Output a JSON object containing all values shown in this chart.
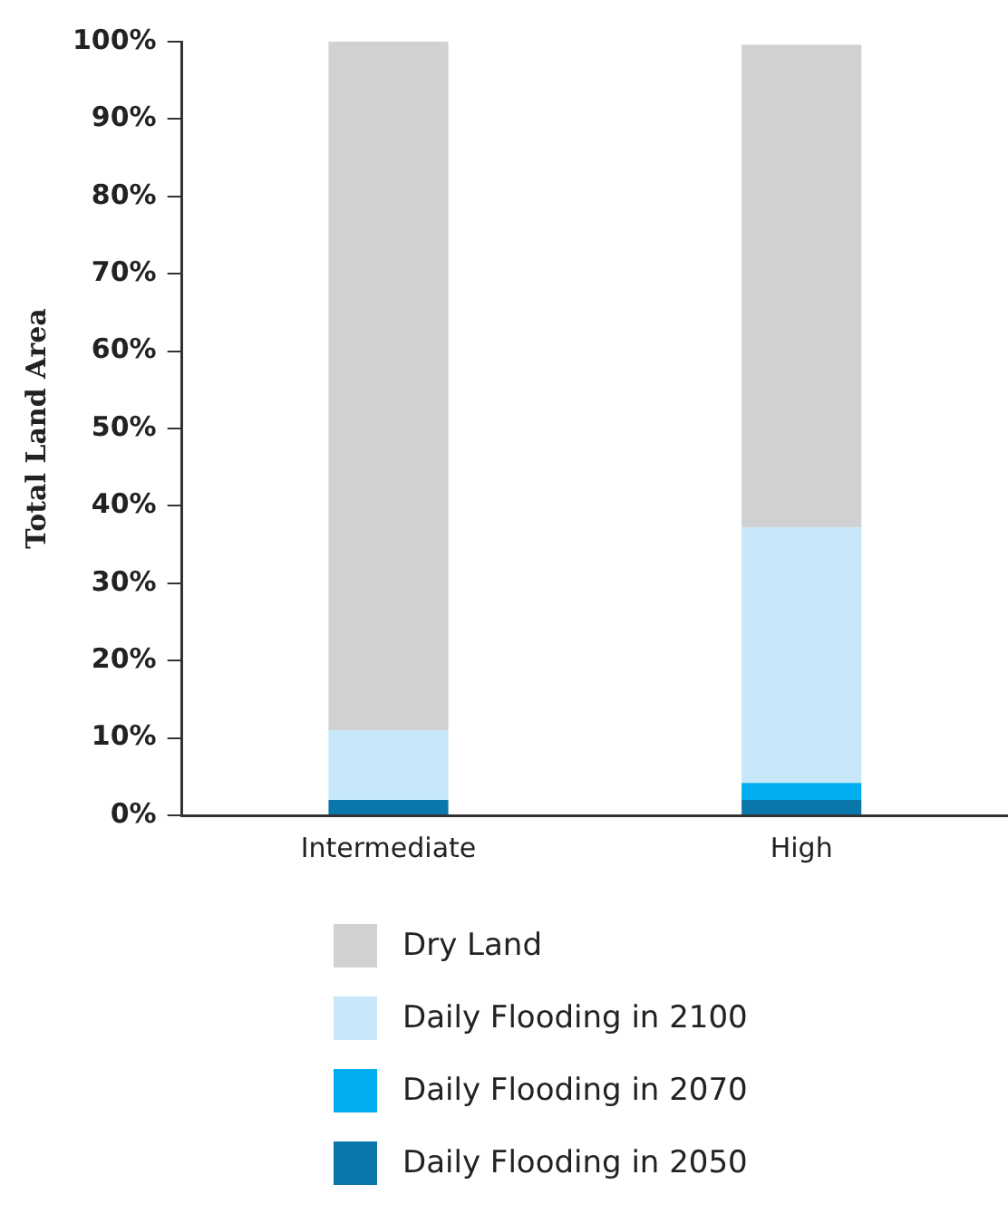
{
  "chart_data": {
    "type": "bar",
    "stacked": true,
    "ylabel": "Total Land Area",
    "categories": [
      "Intermediate",
      "High"
    ],
    "series": [
      {
        "name": "Daily Flooding in 2050",
        "color": "#0a77aa",
        "values": [
          2,
          2
        ]
      },
      {
        "name": "Daily Flooding in 2070",
        "color": "#00aeef",
        "values": [
          0,
          2.2
        ]
      },
      {
        "name": "Daily Flooding in 2100",
        "color": "#c6e8f8",
        "values": [
          9,
          33
        ]
      },
      {
        "name": "Dry Land",
        "color": "#d0d1d3",
        "values": [
          89,
          62.4
        ]
      }
    ],
    "ylim": [
      0,
      100
    ],
    "yticks": [
      {
        "value": 0,
        "label": "0%"
      },
      {
        "value": 10,
        "label": "10%"
      },
      {
        "value": 20,
        "label": "20%"
      },
      {
        "value": 30,
        "label": "30%"
      },
      {
        "value": 40,
        "label": "40%"
      },
      {
        "value": 50,
        "label": "50%"
      },
      {
        "value": 60,
        "label": "60%"
      },
      {
        "value": 70,
        "label": "70%"
      },
      {
        "value": 80,
        "label": "80%"
      },
      {
        "value": 90,
        "label": "90%"
      },
      {
        "value": 100,
        "label": "100%"
      }
    ],
    "grid": false,
    "legend": "bottom"
  }
}
